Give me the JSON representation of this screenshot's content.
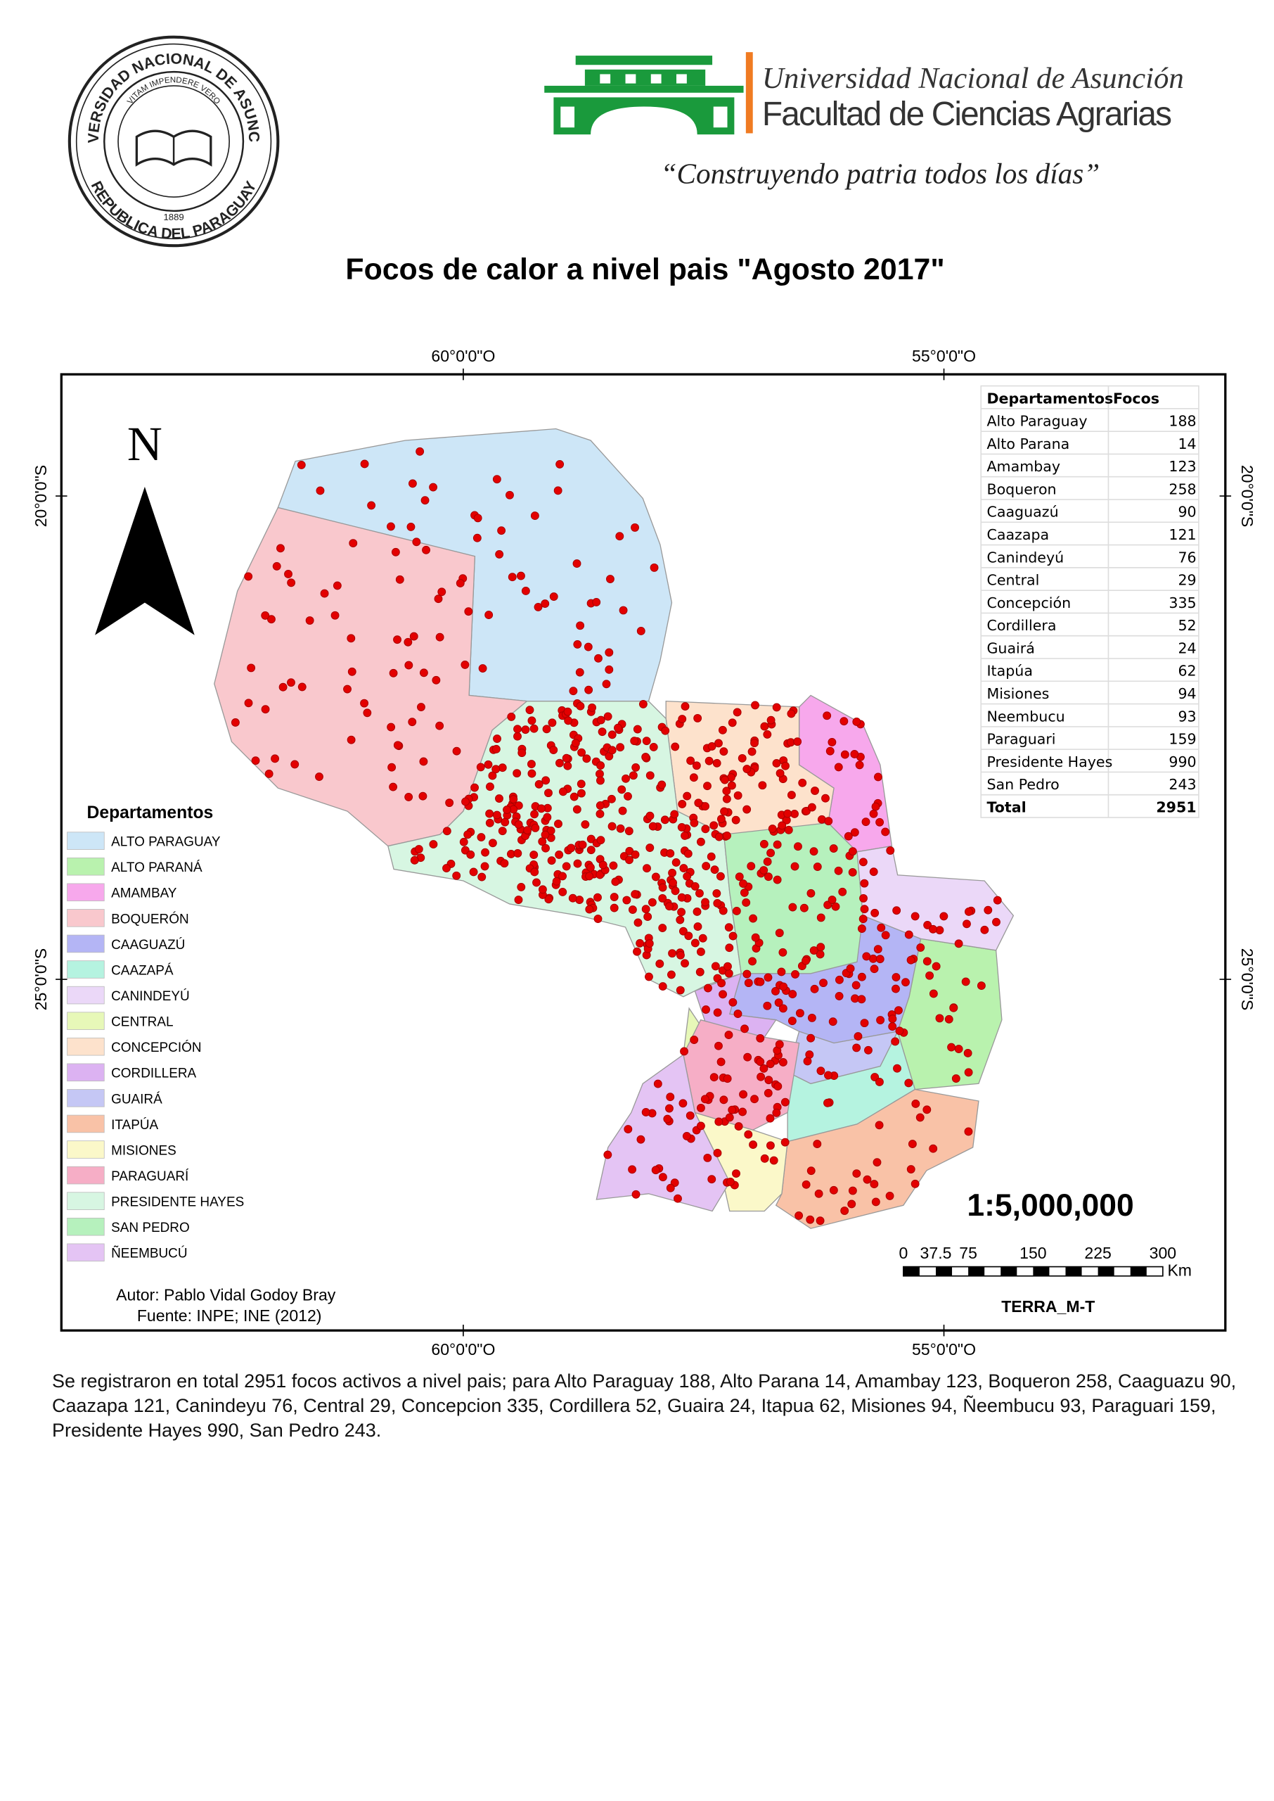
{
  "header": {
    "seal": {
      "top": "UNIVERSIDAD NACIONAL DE ASUNCION",
      "motto": "VITAM IMPENDERE VERO",
      "year": "1889",
      "bottom": "REPUBLICA DEL PARAGUAY"
    },
    "university": "Universidad Nacional de Asunción",
    "faculty": "Facultad de Ciencias Agrarias",
    "slogan": "“Construyendo patria todos los días”"
  },
  "title": "Focos de calor a nivel pais \"Agosto 2017\"",
  "map": {
    "longitudes": [
      "60°0'0\"O",
      "55°0'0\"O"
    ],
    "latitudes": [
      "20°0'0\"S",
      "25°0'0\"S"
    ],
    "north": "N",
    "legend": {
      "title": "Departamentos",
      "items": [
        {
          "label": "ALTO PARAGUAY",
          "color": "#cde6f7"
        },
        {
          "label": "ALTO PARANÁ",
          "color": "#b9f2ae"
        },
        {
          "label": "AMAMBAY",
          "color": "#f7a8ec"
        },
        {
          "label": "BOQUERÓN",
          "color": "#f9c8cd"
        },
        {
          "label": "CAAGUAZÚ",
          "color": "#b4b5f5"
        },
        {
          "label": "CAAZAPÁ",
          "color": "#b5f3e0"
        },
        {
          "label": "CANINDEYÚ",
          "color": "#ebd8f8"
        },
        {
          "label": "CENTRAL",
          "color": "#e7f8b8"
        },
        {
          "label": "CONCEPCIÓN",
          "color": "#fde2cc"
        },
        {
          "label": "CORDILLERA",
          "color": "#dcb2f2"
        },
        {
          "label": "GUAIRÁ",
          "color": "#c5c7f5"
        },
        {
          "label": "ITAPÚA",
          "color": "#f9c2a7"
        },
        {
          "label": "MISIONES",
          "color": "#fbf8c9"
        },
        {
          "label": "PARAGUARÍ",
          "color": "#f6aec6"
        },
        {
          "label": "PRESIDENTE HAYES",
          "color": "#d7f6e2"
        },
        {
          "label": "SAN PEDRO",
          "color": "#b6f1bd"
        },
        {
          "label": "ÑEEMBUCÚ",
          "color": "#e4c4f4"
        }
      ]
    },
    "scale": "1:5,000,000",
    "scale_bar": {
      "ticks": [
        0,
        37.5,
        75,
        150,
        225,
        300
      ],
      "unit": "Km"
    },
    "source_tag": "TERRA_M-T",
    "author": "Autor: Pablo Vidal Godoy Bray",
    "source": "Fuente: INPE; INE (2012)"
  },
  "table": {
    "header": [
      "Departamentos",
      "Focos"
    ],
    "rows": [
      [
        "Alto Paraguay",
        188
      ],
      [
        "Alto Parana",
        14
      ],
      [
        "Amambay",
        123
      ],
      [
        "Boqueron",
        258
      ],
      [
        "Caaguazú",
        90
      ],
      [
        "Caazapa",
        121
      ],
      [
        "Canindeyú",
        76
      ],
      [
        "Central",
        29
      ],
      [
        "Concepción",
        335
      ],
      [
        "Cordillera",
        52
      ],
      [
        "Guairá",
        24
      ],
      [
        "Itapúa",
        62
      ],
      [
        "Misiones",
        94
      ],
      [
        "Neembucu",
        93
      ],
      [
        "Paraguari",
        159
      ],
      [
        "Presidente Hayes",
        990
      ],
      [
        "San Pedro",
        243
      ]
    ],
    "total": [
      "Total",
      2951
    ]
  },
  "caption": "Se registraron en total 2951 focos activos a nivel pais; para Alto Paraguay 188, Alto Parana 14, Amambay 123, Boqueron 258, Caaguazu 90, Caazapa 121, Canindeyu 76, Central 29, Concepcion 335, Cordillera 52, Guaira 24, Itapua 62, Misiones 94, Ñeembucu 93, Paraguari 159, Presidente Hayes 990, San Pedro 243."
}
